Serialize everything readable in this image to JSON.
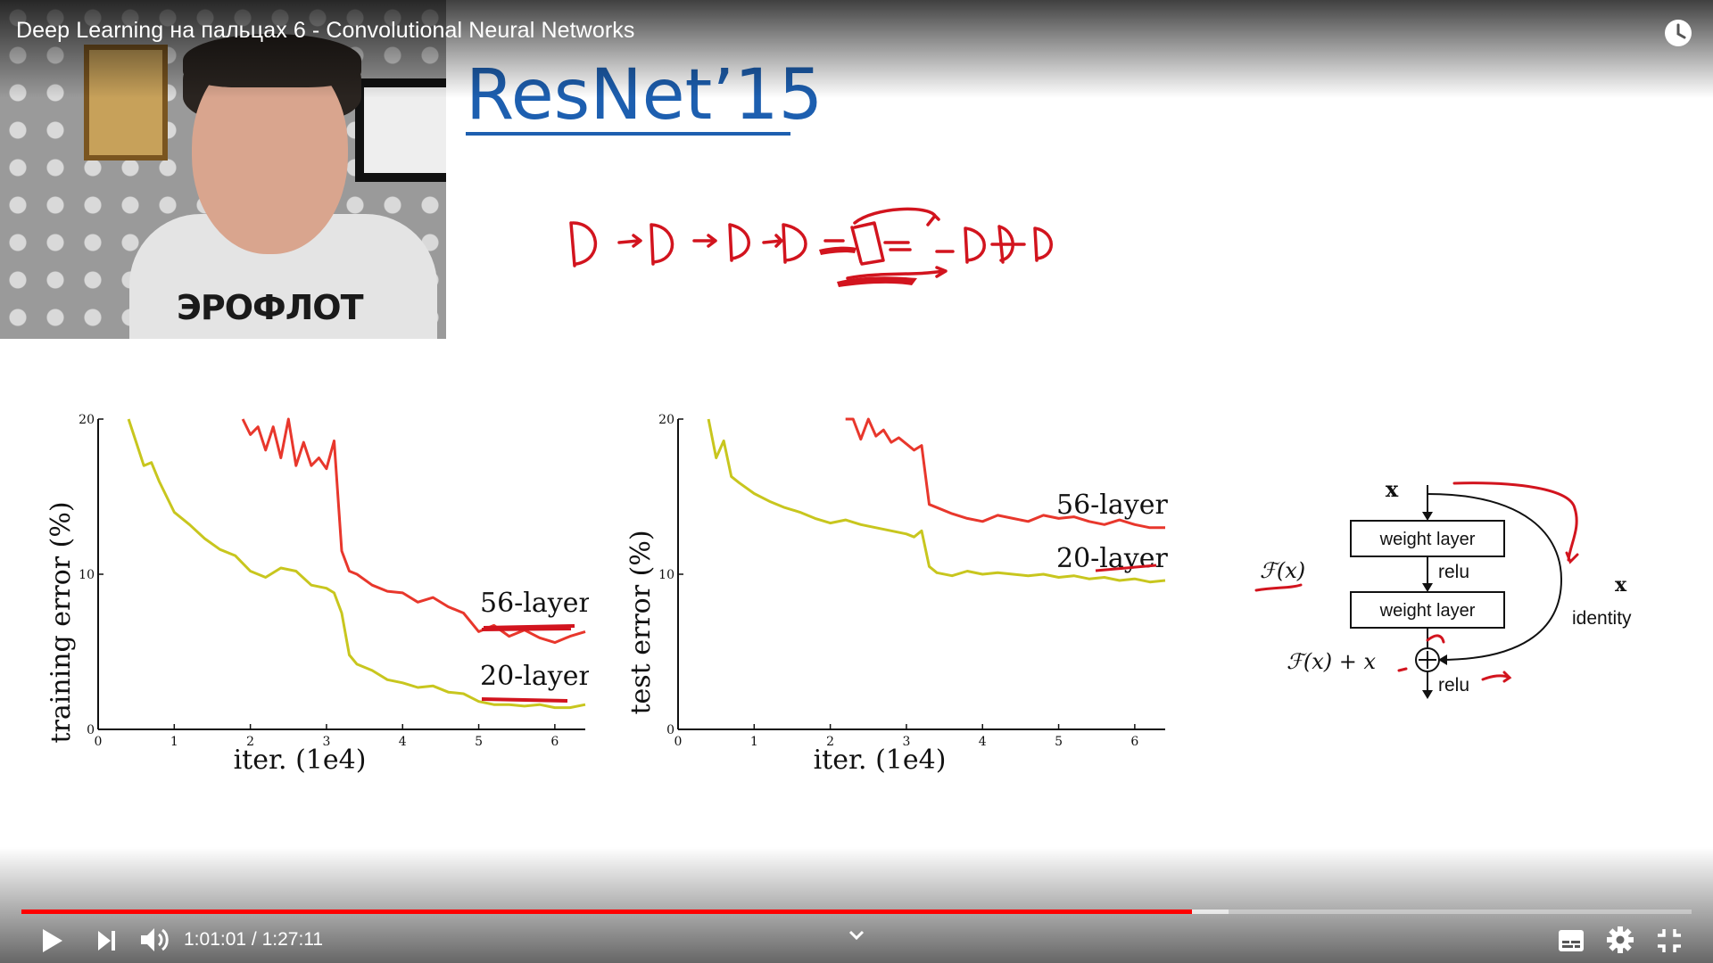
{
  "video": {
    "title": "Deep Learning на пальцах 6 - Convolutional Neural Networks",
    "time_current": "1:01:01",
    "time_total": "1:27:11",
    "time_display": "1:01:01 / 1:27:11",
    "progress_fraction": 0.701,
    "buffered_fraction": 0.723
  },
  "webcam": {
    "shirt_text": "ЭРОФЛОТ"
  },
  "slide": {
    "title": "ResNet’15",
    "left_chart": {
      "ylabel": "training error (%)",
      "xlabel": "iter. (1e4)",
      "legend": [
        "56-layer",
        "20-layer"
      ]
    },
    "right_chart": {
      "ylabel": "test error (%)",
      "xlabel": "iter. (1e4)",
      "legend": [
        "56-layer",
        "20-layer"
      ]
    },
    "diagram": {
      "input": "x",
      "layer1": "weight layer",
      "relu1": "relu",
      "layer2": "weight layer",
      "fx": "ℱ(x)",
      "fx_plus_x": "ℱ(x) + x",
      "relu2": "relu",
      "shortcut_x": "x",
      "identity": "identity"
    }
  },
  "chart_data": [
    {
      "type": "line",
      "xlabel": "iter. (1e4)",
      "ylabel": "training error (%)",
      "xlim": [
        0,
        6.4
      ],
      "ylim": [
        0,
        20
      ],
      "xticks": [
        0,
        1,
        2,
        3,
        4,
        5,
        6
      ],
      "yticks": [
        0,
        10,
        20
      ],
      "series": [
        {
          "name": "56-layer",
          "color": "#e8372c",
          "x": [
            1.9,
            2.0,
            2.1,
            2.2,
            2.3,
            2.4,
            2.5,
            2.6,
            2.7,
            2.8,
            2.9,
            3.0,
            3.1,
            3.2,
            3.3,
            3.4,
            3.6,
            3.8,
            4.0,
            4.2,
            4.4,
            4.6,
            4.8,
            5.0,
            5.2,
            5.4,
            5.6,
            5.8,
            6.0,
            6.2,
            6.4
          ],
          "y": [
            20,
            19.0,
            19.5,
            18.0,
            19.5,
            17.5,
            20,
            17.0,
            18.5,
            17.0,
            17.5,
            16.8,
            18.6,
            11.5,
            10.2,
            10.0,
            9.3,
            8.9,
            8.8,
            8.2,
            8.5,
            7.9,
            7.5,
            6.3,
            6.7,
            6.0,
            6.4,
            5.9,
            5.6,
            6.0,
            6.3
          ]
        },
        {
          "name": "20-layer",
          "color": "#c8c61e",
          "x": [
            0.4,
            0.5,
            0.6,
            0.7,
            0.8,
            1.0,
            1.2,
            1.4,
            1.6,
            1.8,
            2.0,
            2.2,
            2.4,
            2.6,
            2.8,
            3.0,
            3.1,
            3.2,
            3.3,
            3.4,
            3.6,
            3.8,
            4.0,
            4.2,
            4.4,
            4.6,
            4.8,
            5.0,
            5.2,
            5.4,
            5.6,
            5.8,
            6.0,
            6.2,
            6.4
          ],
          "y": [
            20,
            18.5,
            17.0,
            17.2,
            16.0,
            14.0,
            13.2,
            12.3,
            11.6,
            11.2,
            10.2,
            9.8,
            10.4,
            10.2,
            9.3,
            9.1,
            8.8,
            7.5,
            4.8,
            4.2,
            3.8,
            3.2,
            3.0,
            2.7,
            2.8,
            2.4,
            2.3,
            1.8,
            1.6,
            1.6,
            1.5,
            1.6,
            1.4,
            1.4,
            1.6
          ]
        }
      ]
    },
    {
      "type": "line",
      "xlabel": "iter. (1e4)",
      "ylabel": "test error (%)",
      "xlim": [
        0,
        6.4
      ],
      "ylim": [
        0,
        20
      ],
      "xticks": [
        0,
        1,
        2,
        3,
        4,
        5,
        6
      ],
      "yticks": [
        0,
        10,
        20
      ],
      "series": [
        {
          "name": "56-layer",
          "color": "#e8372c",
          "x": [
            2.2,
            2.3,
            2.4,
            2.5,
            2.6,
            2.7,
            2.8,
            2.9,
            3.0,
            3.1,
            3.2,
            3.3,
            3.4,
            3.6,
            3.8,
            4.0,
            4.2,
            4.4,
            4.6,
            4.8,
            5.0,
            5.2,
            5.4,
            5.6,
            5.8,
            6.0,
            6.2,
            6.4
          ],
          "y": [
            20,
            20,
            18.7,
            20,
            18.9,
            19.3,
            18.5,
            18.8,
            18.4,
            18.0,
            18.3,
            14.5,
            14.3,
            13.9,
            13.6,
            13.4,
            13.8,
            13.6,
            13.4,
            13.8,
            13.6,
            13.7,
            13.4,
            13.2,
            13.5,
            13.2,
            13.0,
            13.0
          ]
        },
        {
          "name": "20-layer",
          "color": "#c8c61e",
          "x": [
            0.4,
            0.5,
            0.6,
            0.7,
            0.8,
            1.0,
            1.2,
            1.4,
            1.6,
            1.8,
            2.0,
            2.2,
            2.4,
            2.6,
            2.8,
            3.0,
            3.1,
            3.2,
            3.3,
            3.4,
            3.6,
            3.8,
            4.0,
            4.2,
            4.4,
            4.6,
            4.8,
            5.0,
            5.2,
            5.4,
            5.6,
            5.8,
            6.0,
            6.2,
            6.4
          ],
          "y": [
            20,
            17.5,
            18.6,
            16.3,
            15.9,
            15.2,
            14.7,
            14.3,
            14.0,
            13.6,
            13.3,
            13.5,
            13.2,
            13.0,
            12.8,
            12.6,
            12.4,
            12.8,
            10.5,
            10.1,
            9.9,
            10.2,
            10.0,
            10.1,
            10.0,
            9.9,
            10.0,
            9.8,
            9.9,
            9.7,
            9.8,
            9.6,
            9.7,
            9.5,
            9.6
          ]
        }
      ]
    }
  ],
  "controls": {
    "play_icon": "play-icon",
    "next_icon": "next-icon",
    "volume_icon": "volume-icon",
    "chevron_icon": "chevron-down-icon",
    "subtitles_icon": "subtitles-icon",
    "settings_icon": "gear-icon",
    "fullscreen_exit_icon": "exit-fullscreen-icon",
    "watch_later_icon": "clock-icon"
  }
}
